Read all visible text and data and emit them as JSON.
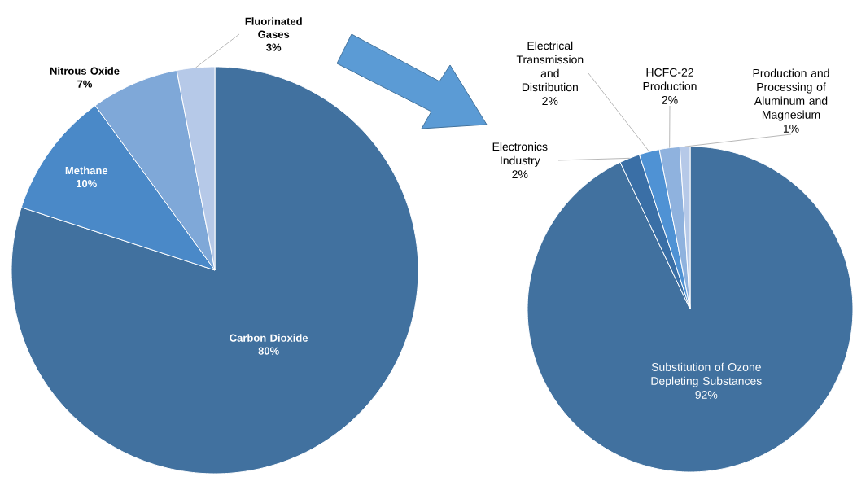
{
  "chart_data": [
    {
      "type": "pie",
      "categories": [
        "Carbon Dioxide",
        "Methane",
        "Nitrous Oxide",
        "Fluorinated Gases"
      ],
      "values": [
        80,
        10,
        7,
        3
      ],
      "value_labels": [
        "80%",
        "10%",
        "7%",
        "3%"
      ],
      "colors": [
        "#41719f",
        "#4a89c8",
        "#7fa8d8",
        "#b6c9e8"
      ]
    },
    {
      "type": "pie",
      "categories": [
        "Substitution of Ozone Depleting Substances",
        "Electronics Industry",
        "Electrical Transmission and Distribution",
        "HCFC-22 Production",
        "Production and Processing of Aluminum and Magnesium"
      ],
      "values": [
        92,
        2,
        2,
        2,
        1
      ],
      "value_labels": [
        "92%",
        "2%",
        "2%",
        "2%",
        "1%"
      ],
      "colors": [
        "#41719f",
        "#3a6fa6",
        "#4f92d4",
        "#8fb2de",
        "#b6c9e8"
      ]
    }
  ]
}
